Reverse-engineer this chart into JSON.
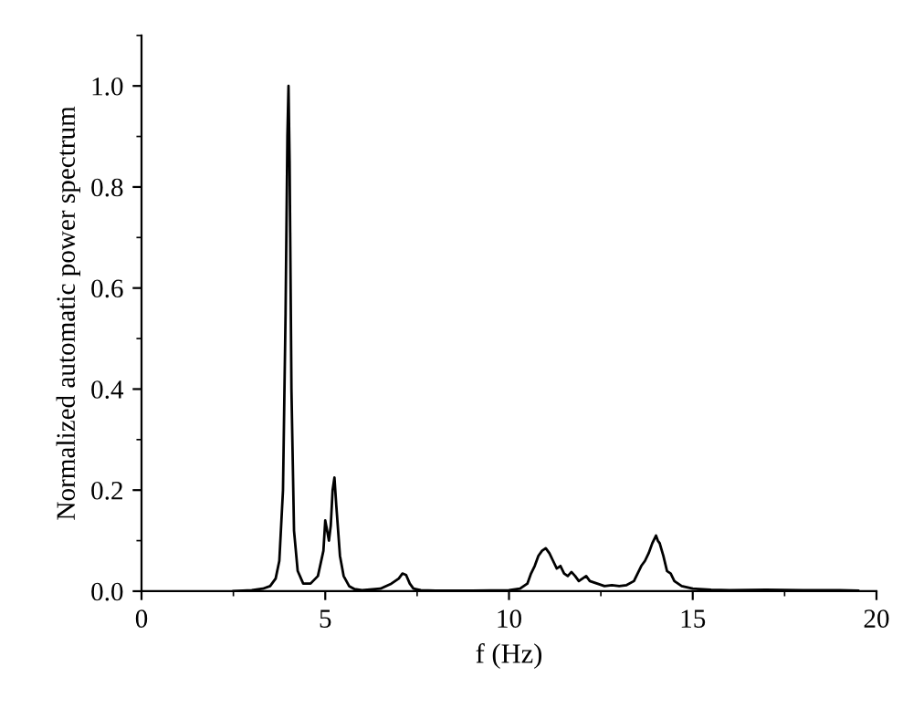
{
  "chart_data": {
    "type": "line",
    "xlabel": "f (Hz)",
    "ylabel": "Normalized automatic power spectrum",
    "xlim": [
      0,
      20
    ],
    "ylim": [
      0,
      1.1
    ],
    "xticks": [
      0,
      5,
      10,
      15,
      20
    ],
    "yticks": [
      {
        "value": 0,
        "label": "0.0"
      },
      {
        "value": 0.2,
        "label": "0.2"
      },
      {
        "value": 0.4,
        "label": "0.4"
      },
      {
        "value": 0.6,
        "label": "0.6"
      },
      {
        "value": 0.8,
        "label": "0.8"
      },
      {
        "value": 1.0,
        "label": "1.0"
      }
    ],
    "grid": false,
    "marker": "none",
    "line_style": "solid",
    "series": [
      {
        "color": "#000000",
        "x": [
          2.5,
          3.0,
          3.3,
          3.5,
          3.65,
          3.75,
          3.85,
          3.92,
          3.97,
          4.0,
          4.03,
          4.08,
          4.15,
          4.25,
          4.4,
          4.6,
          4.8,
          4.95,
          5.0,
          5.05,
          5.1,
          5.15,
          5.2,
          5.25,
          5.3,
          5.4,
          5.5,
          5.65,
          5.8,
          6.0,
          6.5,
          6.8,
          7.0,
          7.1,
          7.2,
          7.3,
          7.4,
          7.6,
          8.0,
          9.0,
          10.0,
          10.3,
          10.5,
          10.6,
          10.7,
          10.8,
          10.9,
          11.0,
          11.1,
          11.2,
          11.3,
          11.4,
          11.5,
          11.6,
          11.7,
          11.8,
          11.9,
          12.0,
          12.1,
          12.2,
          12.4,
          12.6,
          12.8,
          13.0,
          13.2,
          13.4,
          13.6,
          13.7,
          13.8,
          13.9,
          14.0,
          14.05,
          14.1,
          14.2,
          14.3,
          14.4,
          14.5,
          14.7,
          15.0,
          15.5,
          16.0,
          17.0,
          18.0,
          19.0,
          19.5
        ],
        "values": [
          0.0,
          0.002,
          0.005,
          0.01,
          0.025,
          0.06,
          0.2,
          0.55,
          0.9,
          1.0,
          0.85,
          0.4,
          0.12,
          0.04,
          0.015,
          0.015,
          0.03,
          0.08,
          0.14,
          0.12,
          0.1,
          0.13,
          0.2,
          0.225,
          0.17,
          0.07,
          0.03,
          0.01,
          0.004,
          0.002,
          0.005,
          0.015,
          0.025,
          0.035,
          0.032,
          0.015,
          0.005,
          0.002,
          0.001,
          0.001,
          0.002,
          0.005,
          0.015,
          0.035,
          0.05,
          0.07,
          0.08,
          0.085,
          0.075,
          0.06,
          0.045,
          0.05,
          0.035,
          0.03,
          0.038,
          0.03,
          0.02,
          0.025,
          0.03,
          0.02,
          0.015,
          0.01,
          0.012,
          0.01,
          0.012,
          0.02,
          0.05,
          0.06,
          0.075,
          0.095,
          0.11,
          0.1,
          0.095,
          0.07,
          0.04,
          0.035,
          0.02,
          0.01,
          0.005,
          0.003,
          0.002,
          0.003,
          0.002,
          0.002,
          0.001
        ]
      }
    ]
  }
}
